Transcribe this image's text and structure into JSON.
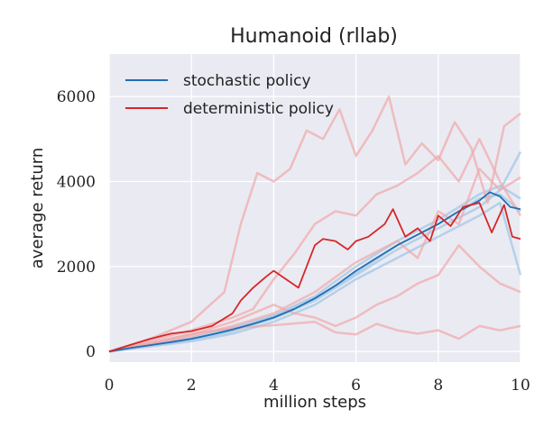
{
  "chart_data": {
    "type": "line",
    "title": "Humanoid (rllab)",
    "xlabel": "million steps",
    "ylabel": "average return",
    "xlim": [
      0,
      10
    ],
    "ylim": [
      -250,
      7000
    ],
    "xticks": [
      0,
      2,
      4,
      6,
      8,
      10
    ],
    "xtick_labels": [
      "0",
      "2",
      "4",
      "6",
      "8",
      "10"
    ],
    "yticks": [
      0,
      2000,
      4000,
      6000
    ],
    "ytick_labels": [
      "0",
      "2000",
      "4000",
      "6000"
    ],
    "grid": true,
    "legend_position": "top-left",
    "colors": {
      "stochastic": "#1f6fb2",
      "deterministic": "#d62728",
      "stochastic_faint": "#9ec4e6",
      "deterministic_faint": "#f0a8aa",
      "background": "#eaeaf2",
      "grid": "#ffffff"
    },
    "series": [
      {
        "name": "stochastic policy",
        "role": "mean",
        "x": [
          0,
          0.5,
          1,
          1.5,
          2,
          2.5,
          3,
          3.5,
          4,
          4.5,
          5,
          5.5,
          6,
          6.5,
          7,
          7.5,
          8,
          8.5,
          9,
          9.25,
          9.5,
          9.75,
          10
        ],
        "values": [
          0,
          80,
          150,
          220,
          300,
          400,
          520,
          650,
          800,
          1000,
          1250,
          1550,
          1900,
          2200,
          2500,
          2750,
          3000,
          3300,
          3550,
          3750,
          3650,
          3400,
          3350
        ]
      },
      {
        "name": "deterministic policy",
        "role": "mean",
        "x": [
          0,
          0.5,
          1,
          1.5,
          2,
          2.5,
          3,
          3.2,
          3.5,
          3.8,
          4,
          4.3,
          4.6,
          5,
          5.2,
          5.5,
          5.8,
          6,
          6.3,
          6.7,
          6.9,
          7.2,
          7.5,
          7.8,
          8,
          8.3,
          8.6,
          9,
          9.3,
          9.6,
          9.8,
          10
        ],
        "values": [
          0,
          150,
          300,
          420,
          480,
          600,
          900,
          1200,
          1500,
          1750,
          1900,
          1700,
          1500,
          2500,
          2650,
          2600,
          2400,
          2600,
          2700,
          3000,
          3350,
          2700,
          2900,
          2600,
          3200,
          2950,
          3400,
          3500,
          2800,
          3450,
          2700,
          2650
        ]
      }
    ],
    "runs": [
      {
        "group": "stochastic",
        "x": [
          0,
          1,
          2,
          3,
          4,
          5,
          6,
          7,
          8,
          9,
          9.5,
          10
        ],
        "values": [
          0,
          140,
          280,
          480,
          780,
          1200,
          1800,
          2400,
          2900,
          3400,
          3800,
          4700
        ]
      },
      {
        "group": "stochastic",
        "x": [
          0,
          1,
          2,
          3,
          4,
          5,
          6,
          7,
          8,
          9,
          9.5,
          10
        ],
        "values": [
          0,
          160,
          320,
          560,
          850,
          1300,
          2000,
          2600,
          3100,
          3700,
          3900,
          3600
        ]
      },
      {
        "group": "stochastic",
        "x": [
          0,
          1,
          2,
          3,
          4,
          5,
          6,
          7,
          8,
          9,
          9.5,
          10
        ],
        "values": [
          0,
          120,
          240,
          420,
          700,
          1100,
          1700,
          2200,
          2700,
          3200,
          3500,
          1800
        ]
      },
      {
        "group": "stochastic",
        "x": [
          0,
          1,
          2,
          3,
          4,
          5,
          6,
          7,
          8,
          9,
          9.5,
          10
        ],
        "values": [
          0,
          150,
          300,
          500,
          820,
          1250,
          1850,
          2500,
          3000,
          3600,
          3700,
          3300
        ]
      },
      {
        "group": "deterministic",
        "x": [
          0,
          1,
          2,
          2.8,
          3.2,
          3.6,
          4,
          4.4,
          4.8,
          5.2,
          5.6,
          6,
          6.4,
          6.8,
          7.2,
          7.6,
          8,
          8.4,
          8.8,
          9.2,
          9.6,
          10
        ],
        "values": [
          0,
          300,
          700,
          1400,
          3000,
          4200,
          4000,
          4300,
          5200,
          5000,
          5700,
          4600,
          5200,
          6000,
          4400,
          4900,
          4500,
          5400,
          4800,
          3500,
          5300,
          5600
        ]
      },
      {
        "group": "deterministic",
        "x": [
          0,
          1,
          2,
          3,
          3.5,
          4,
          4.5,
          5,
          5.5,
          6,
          6.5,
          7,
          7.5,
          8,
          8.5,
          9,
          9.5,
          10
        ],
        "values": [
          0,
          250,
          500,
          800,
          1000,
          1700,
          2300,
          3000,
          3300,
          3200,
          3700,
          3900,
          4200,
          4600,
          4000,
          5000,
          4000,
          3200
        ]
      },
      {
        "group": "deterministic",
        "x": [
          0,
          1,
          2,
          3,
          4,
          4.5,
          5,
          5.5,
          6,
          6.5,
          7,
          7.5,
          8,
          8.5,
          9,
          9.5,
          10
        ],
        "values": [
          0,
          200,
          400,
          700,
          1100,
          900,
          800,
          600,
          800,
          1100,
          1300,
          1600,
          1800,
          2500,
          2000,
          1600,
          1400
        ]
      },
      {
        "group": "deterministic",
        "x": [
          0,
          1,
          2,
          3,
          4,
          5,
          5.5,
          6,
          6.5,
          7,
          7.5,
          8,
          8.5,
          9,
          9.5,
          10
        ],
        "values": [
          0,
          200,
          420,
          550,
          620,
          700,
          450,
          400,
          650,
          500,
          420,
          500,
          300,
          600,
          500,
          600
        ]
      },
      {
        "group": "deterministic",
        "x": [
          0,
          1,
          2,
          3,
          4,
          5,
          6,
          7,
          7.5,
          8,
          8.5,
          9,
          9.5,
          10
        ],
        "values": [
          0,
          180,
          360,
          600,
          900,
          1400,
          2100,
          2600,
          2200,
          3300,
          3000,
          4300,
          3800,
          4100
        ]
      }
    ]
  }
}
